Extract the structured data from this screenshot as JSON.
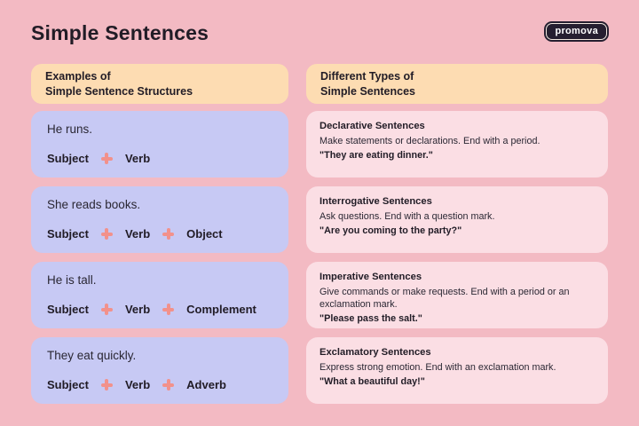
{
  "page": {
    "title": "Simple Sentences",
    "brand": "promova"
  },
  "colors": {
    "background": "#f3bac3",
    "header_card": "#fddcb2",
    "example_card": "#c7c9f4",
    "type_card": "#fbdee4",
    "plus_icon": "#f2918b",
    "text_dark": "#211c26",
    "badge_bg": "#261f30",
    "badge_text": "#ffffff"
  },
  "left_column": {
    "header_line1": "Examples of",
    "header_line2": "Simple Sentence Structures",
    "cards": [
      {
        "sentence": "He runs.",
        "parts": [
          "Subject",
          "Verb"
        ]
      },
      {
        "sentence": "She reads books.",
        "parts": [
          "Subject",
          "Verb",
          "Object"
        ]
      },
      {
        "sentence": "He is tall.",
        "parts": [
          "Subject",
          "Verb",
          "Complement"
        ]
      },
      {
        "sentence": "They eat quickly.",
        "parts": [
          "Subject",
          "Verb",
          "Adverb"
        ]
      }
    ]
  },
  "right_column": {
    "header_line1": "Different Types of",
    "header_line2": "Simple Sentences",
    "cards": [
      {
        "title": "Declarative Sentences",
        "description": "Make statements or declarations. End with a period.",
        "example": "\"They are eating dinner.\""
      },
      {
        "title": "Interrogative Sentences",
        "description": "Ask questions. End with a question mark.",
        "example": "\"Are you coming to the party?\""
      },
      {
        "title": "Imperative Sentences",
        "description": "Give commands or make requests. End with a period or an exclamation mark.",
        "example": "\"Please pass the salt.\""
      },
      {
        "title": "Exclamatory Sentences",
        "description": "Express strong emotion. End with an exclamation mark.",
        "example": "\"What a beautiful day!\""
      }
    ]
  }
}
